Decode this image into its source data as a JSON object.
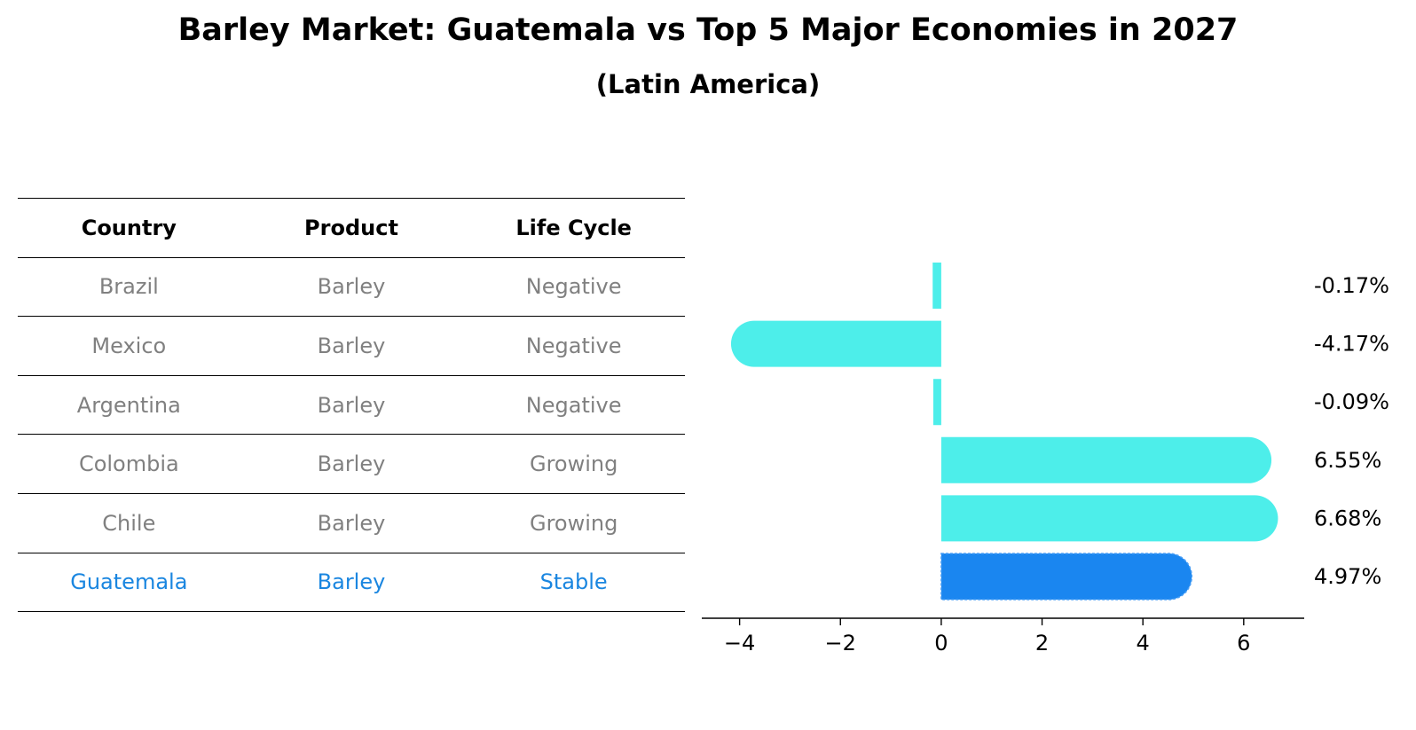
{
  "title": "Barley Market: Guatemala vs Top 5 Major Economies in 2027",
  "subtitle": "(Latin America)",
  "table": {
    "headers": [
      "Country",
      "Product",
      "Life Cycle"
    ],
    "rows": [
      {
        "country": "Brazil",
        "product": "Barley",
        "life_cycle": "Negative"
      },
      {
        "country": "Mexico",
        "product": "Barley",
        "life_cycle": "Negative"
      },
      {
        "country": "Argentina",
        "product": "Barley",
        "life_cycle": "Negative"
      },
      {
        "country": "Colombia",
        "product": "Barley",
        "life_cycle": "Growing"
      },
      {
        "country": "Chile",
        "product": "Barley",
        "life_cycle": "Growing"
      },
      {
        "country": "Guatemala",
        "product": "Barley",
        "life_cycle": "Stable",
        "highlight": true
      }
    ]
  },
  "colors": {
    "bar": "#4deeea",
    "highlight": "#1a86f0",
    "muted_text": "#808080",
    "highlight_text": "#1a86e0"
  },
  "chart_data": {
    "type": "bar",
    "orientation": "horizontal",
    "categories": [
      "Brazil",
      "Mexico",
      "Argentina",
      "Colombia",
      "Chile",
      "Guatemala"
    ],
    "values": [
      -0.17,
      -4.17,
      -0.09,
      6.55,
      6.68,
      4.97
    ],
    "value_labels": [
      "-0.17%",
      "-4.17%",
      "-0.09%",
      "6.55%",
      "6.68%",
      "4.97%"
    ],
    "highlight_index": 5,
    "xlim": [
      -4.75,
      7.2
    ],
    "xticks": [
      -4,
      -2,
      0,
      2,
      4,
      6
    ],
    "xtick_labels": [
      "−4",
      "−2",
      "0",
      "2",
      "4",
      "6"
    ],
    "title": "Barley Market: Guatemala vs Top 5 Major Economies in 2027",
    "xlabel": "",
    "ylabel": ""
  }
}
